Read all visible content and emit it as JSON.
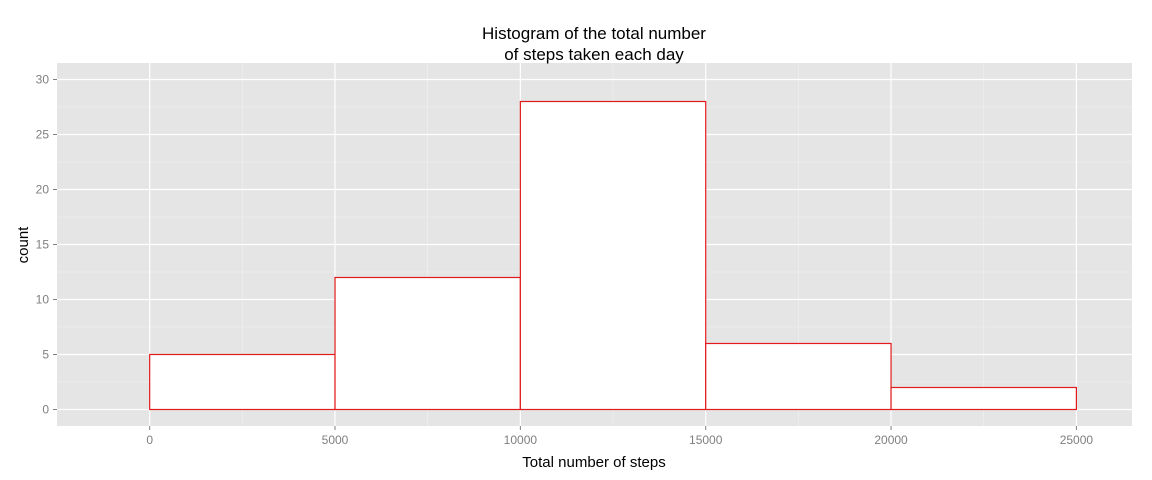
{
  "chart_data": {
    "type": "bar",
    "title_lines": [
      "Histogram of the total number",
      "of steps taken each day"
    ],
    "xlabel": "Total number of steps",
    "ylabel": "count",
    "bins": [
      {
        "start": 0,
        "end": 5000,
        "count": 5
      },
      {
        "start": 5000,
        "end": 10000,
        "count": 12
      },
      {
        "start": 10000,
        "end": 15000,
        "count": 28
      },
      {
        "start": 15000,
        "end": 20000,
        "count": 6
      },
      {
        "start": 20000,
        "end": 25000,
        "count": 2
      }
    ],
    "xlim": [
      -2500,
      26500
    ],
    "ylim": [
      -1.5,
      31.5
    ],
    "x_ticks": [
      "0",
      "5000",
      "10000",
      "15000",
      "20000",
      "25000"
    ],
    "y_ticks": [
      "0",
      "5",
      "10",
      "15",
      "20",
      "25",
      "30"
    ],
    "grid": true,
    "colors": {
      "panel_background": "#e5e5e5",
      "grid_major": "#ffffff",
      "grid_minor": "#f2f2f2",
      "bar_fill": "#ffffff",
      "bar_outline": "#e31a1c",
      "tick_label": "#7f7f7f"
    }
  }
}
